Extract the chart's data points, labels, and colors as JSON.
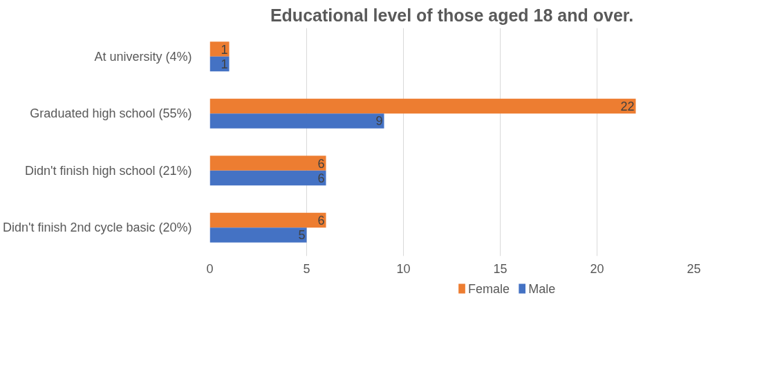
{
  "chart_data": {
    "type": "bar",
    "orientation": "horizontal",
    "title": "Educational level of those aged 18 and over.",
    "categories": [
      "At university (4%)",
      "Graduated high school (55%)",
      "Didn't finish high school (21%)",
      "Didn't finish 2nd cycle basic (20%)"
    ],
    "series": [
      {
        "name": "Female",
        "color": "#ed7d31",
        "values": [
          1,
          22,
          6,
          6
        ]
      },
      {
        "name": "Male",
        "color": "#4472c4",
        "values": [
          1,
          9,
          6,
          5
        ]
      }
    ],
    "xlim": [
      0,
      25
    ],
    "xticks": [
      0,
      5,
      10,
      15,
      20,
      25
    ],
    "grid": "x",
    "legend": "bottom",
    "data_labels": true
  }
}
